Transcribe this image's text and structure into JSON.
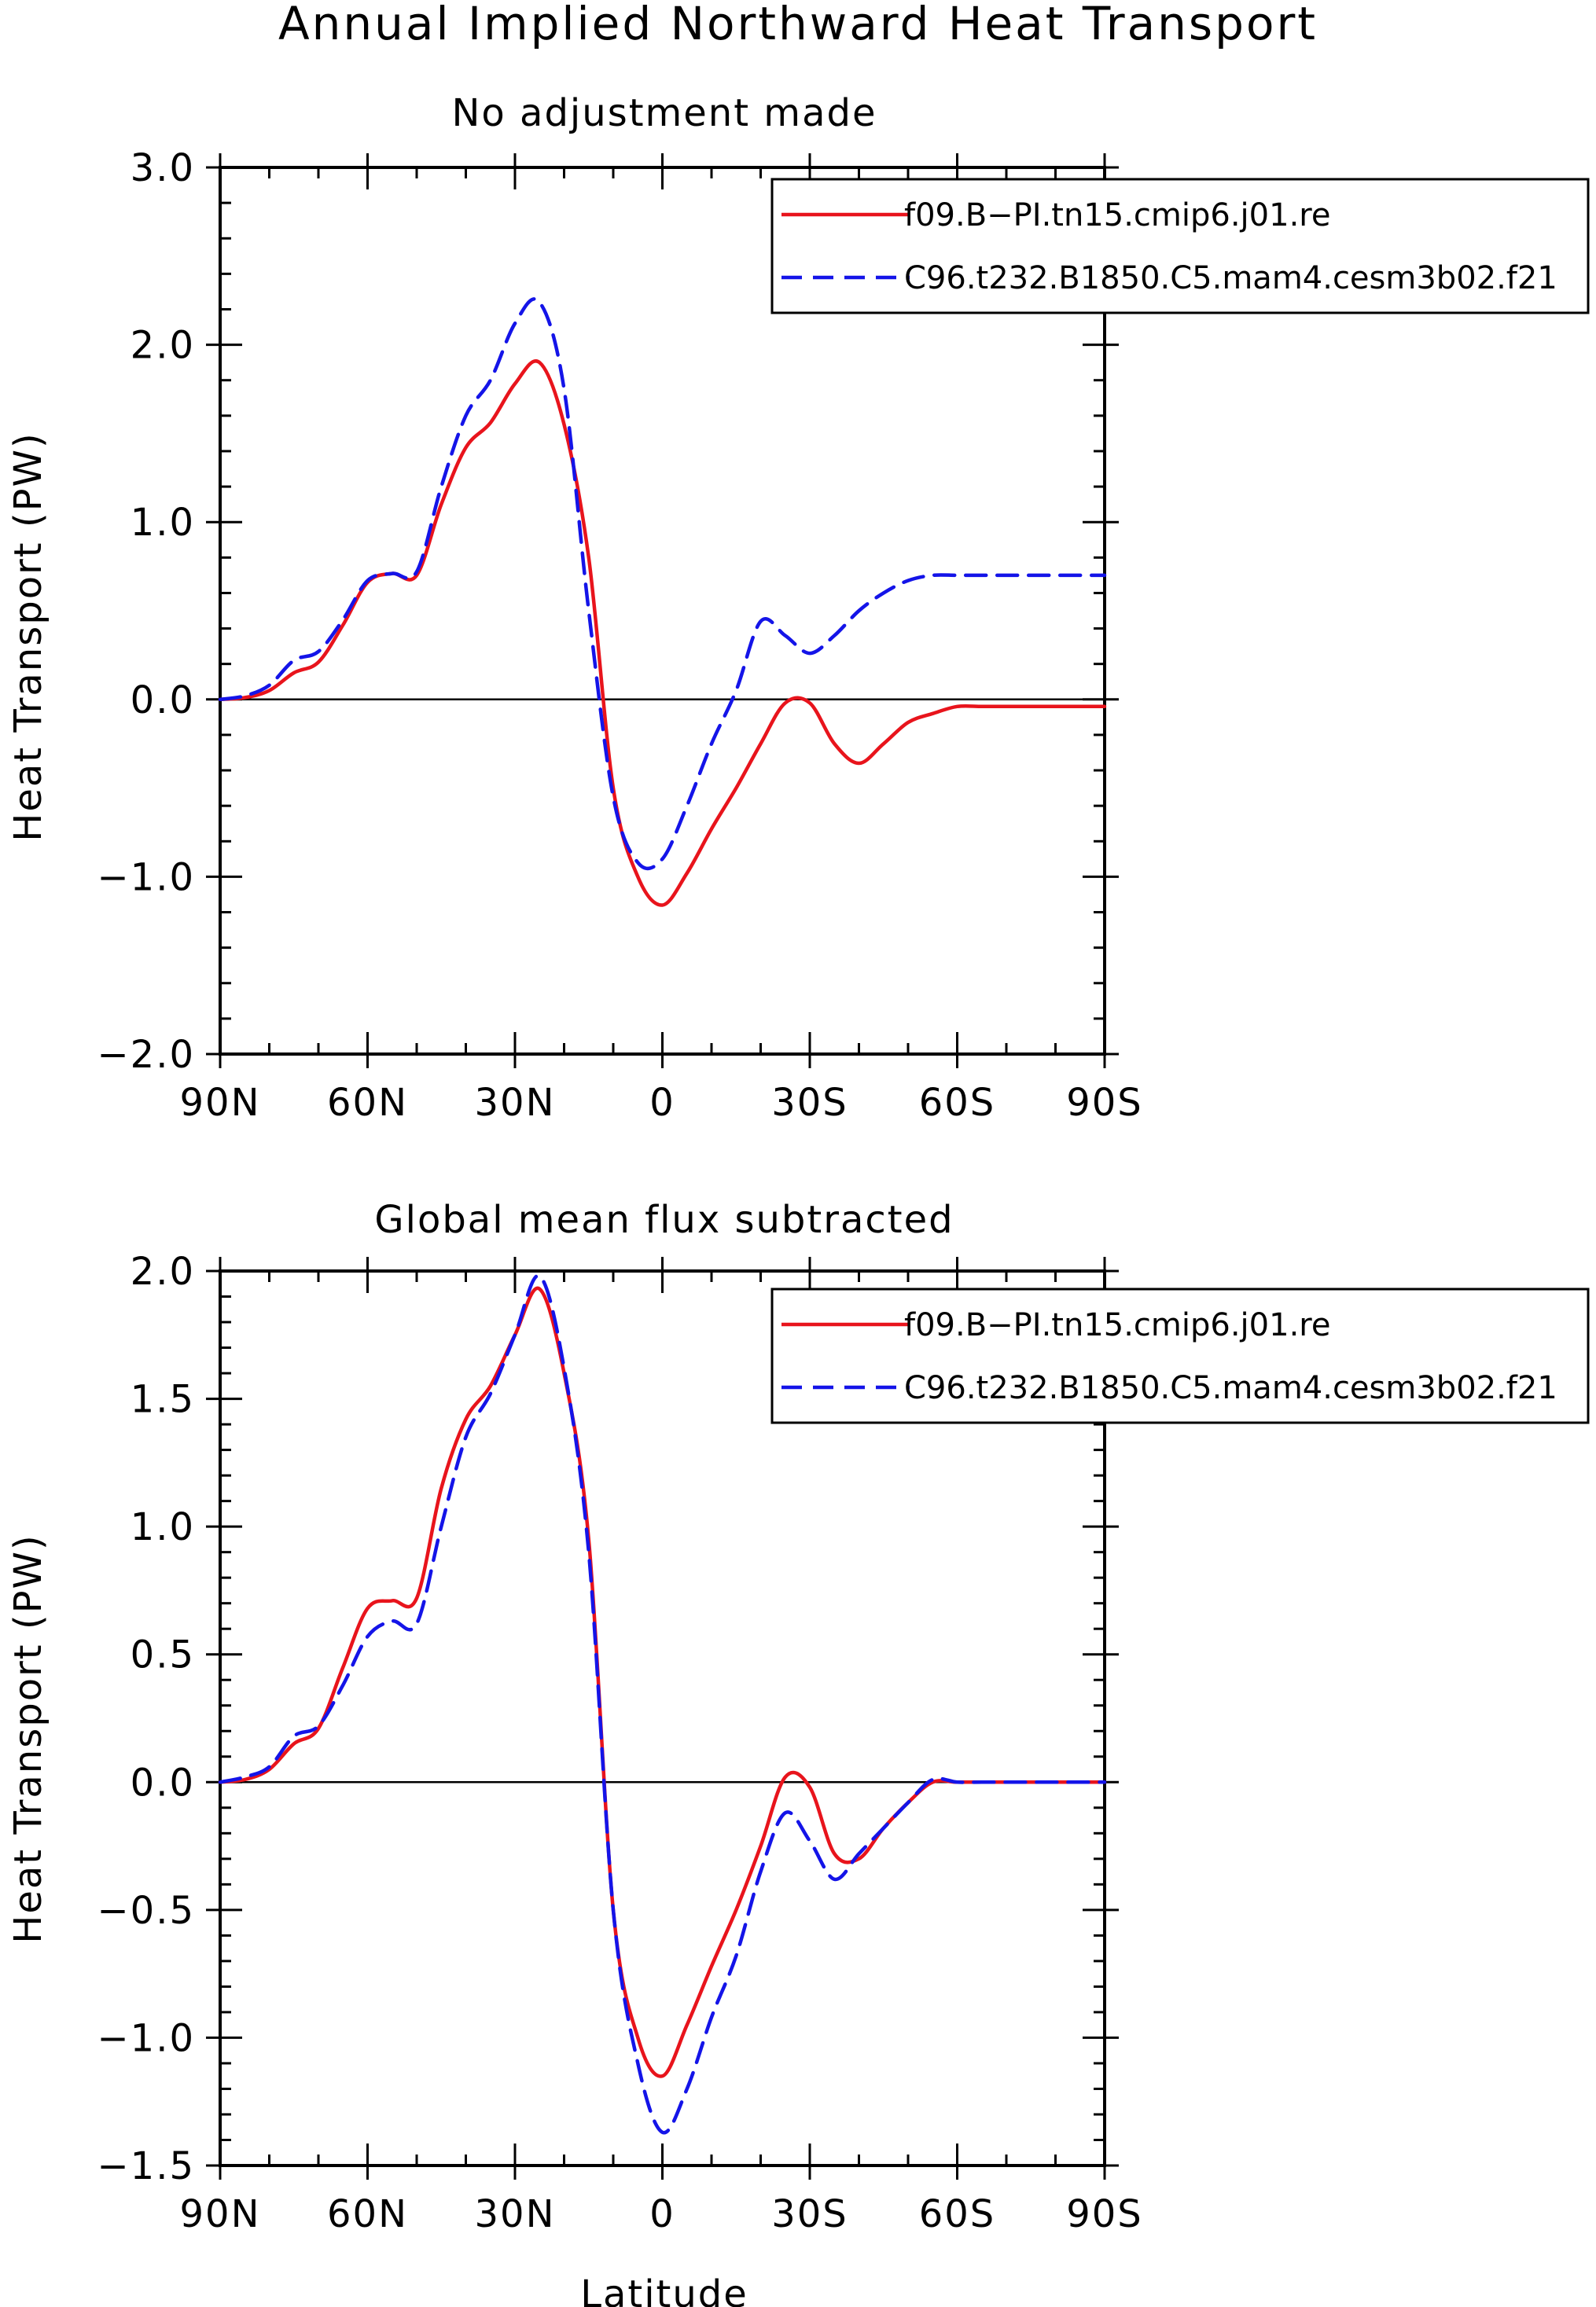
{
  "figure_title": "Annual Implied Northward Heat Transport",
  "chart_data": [
    {
      "type": "line",
      "title": "No adjustment made",
      "xlabel": "",
      "ylabel": "Heat Transport (PW)",
      "xlim": [
        90,
        -90
      ],
      "ylim": [
        -2.0,
        3.0
      ],
      "x_tick_values": [
        90,
        60,
        30,
        0,
        -30,
        -60,
        -90
      ],
      "x_tick_labels": [
        "90N",
        "60N",
        "30N",
        "0",
        "30S",
        "60S",
        "90S"
      ],
      "y_tick_values": [
        3.0,
        2.0,
        1.0,
        0.0,
        -1.0,
        -2.0
      ],
      "y_tick_labels": [
        "3.0",
        "2.0",
        "1.0",
        "0.0",
        "−1.0",
        "−2.0"
      ],
      "zero_line": true,
      "grid": false,
      "legend_position": "top-right",
      "series": [
        {
          "name": "f09.B−PI.tn15.cmip6.j01.re",
          "color": "#e8141c",
          "dash": "solid",
          "x": [
            90,
            85,
            80,
            75,
            70,
            65,
            60,
            55,
            50,
            45,
            40,
            35,
            30,
            25,
            20,
            15,
            10,
            5,
            0,
            -5,
            -10,
            -15,
            -20,
            -25,
            -30,
            -35,
            -40,
            -45,
            -50,
            -55,
            -60,
            -65,
            -70,
            -75,
            -80,
            -85,
            -90
          ],
          "y": [
            0.0,
            0.01,
            0.05,
            0.15,
            0.21,
            0.42,
            0.66,
            0.71,
            0.7,
            1.1,
            1.42,
            1.56,
            1.78,
            1.9,
            1.55,
            0.8,
            -0.5,
            -1.0,
            -1.16,
            -0.98,
            -0.73,
            -0.5,
            -0.25,
            -0.02,
            -0.02,
            -0.25,
            -0.36,
            -0.25,
            -0.13,
            -0.08,
            -0.04,
            -0.04,
            -0.04,
            -0.04,
            -0.04,
            -0.04,
            -0.04
          ]
        },
        {
          "name": "C96.t232.B1850.C5.mam4.cesm3b02.f21",
          "color": "#1414e8",
          "dash": "dashed",
          "x": [
            90,
            85,
            80,
            75,
            70,
            65,
            60,
            55,
            50,
            45,
            40,
            35,
            30,
            25,
            20,
            15,
            10,
            5,
            0,
            -5,
            -10,
            -15,
            -20,
            -25,
            -30,
            -35,
            -40,
            -45,
            -50,
            -55,
            -60,
            -65,
            -70,
            -75,
            -80,
            -85,
            -90
          ],
          "y": [
            0.0,
            0.02,
            0.08,
            0.22,
            0.27,
            0.45,
            0.67,
            0.71,
            0.72,
            1.2,
            1.6,
            1.8,
            2.12,
            2.24,
            1.75,
            0.5,
            -0.55,
            -0.92,
            -0.9,
            -0.6,
            -0.25,
            0.05,
            0.44,
            0.36,
            0.26,
            0.36,
            0.5,
            0.6,
            0.67,
            0.7,
            0.7,
            0.7,
            0.7,
            0.7,
            0.7,
            0.7,
            0.7
          ]
        }
      ]
    },
    {
      "type": "line",
      "title": "Global mean flux subtracted",
      "xlabel": "Latitude",
      "ylabel": "Heat Transport (PW)",
      "xlim": [
        90,
        -90
      ],
      "ylim": [
        -1.5,
        2.0
      ],
      "x_tick_values": [
        90,
        60,
        30,
        0,
        -30,
        -60,
        -90
      ],
      "x_tick_labels": [
        "90N",
        "60N",
        "30N",
        "0",
        "30S",
        "60S",
        "90S"
      ],
      "y_tick_values": [
        2.0,
        1.5,
        1.0,
        0.5,
        0.0,
        -0.5,
        -1.0,
        -1.5
      ],
      "y_tick_labels": [
        "2.0",
        "1.5",
        "1.0",
        "0.5",
        "0.0",
        "−0.5",
        "−1.0",
        "−1.5"
      ],
      "zero_line": true,
      "grid": false,
      "legend_position": "top-right",
      "series": [
        {
          "name": "f09.B−PI.tn15.cmip6.j01.re",
          "color": "#e8141c",
          "dash": "solid",
          "x": [
            90,
            85,
            80,
            75,
            70,
            65,
            60,
            55,
            50,
            45,
            40,
            35,
            30,
            25,
            20,
            15,
            10,
            5,
            0,
            -5,
            -10,
            -15,
            -20,
            -25,
            -30,
            -35,
            -40,
            -45,
            -50,
            -55,
            -60,
            -65,
            -70,
            -75,
            -80,
            -85,
            -90
          ],
          "y": [
            0.0,
            0.01,
            0.05,
            0.15,
            0.21,
            0.45,
            0.68,
            0.71,
            0.72,
            1.15,
            1.42,
            1.55,
            1.75,
            1.93,
            1.6,
            0.95,
            -0.5,
            -1.0,
            -1.15,
            -0.95,
            -0.72,
            -0.5,
            -0.25,
            0.02,
            -0.02,
            -0.28,
            -0.3,
            -0.18,
            -0.08,
            0.0,
            0.0,
            0.0,
            0.0,
            0.0,
            0.0,
            0.0,
            0.0
          ]
        },
        {
          "name": "C96.t232.B1850.C5.mam4.cesm3b02.f21",
          "color": "#1414e8",
          "dash": "dashed",
          "x": [
            90,
            85,
            80,
            75,
            70,
            65,
            60,
            55,
            50,
            45,
            40,
            35,
            30,
            25,
            20,
            15,
            10,
            5,
            0,
            -5,
            -10,
            -15,
            -20,
            -25,
            -30,
            -35,
            -40,
            -45,
            -50,
            -55,
            -60,
            -65,
            -70,
            -75,
            -80,
            -85,
            -90
          ],
          "y": [
            0.0,
            0.02,
            0.06,
            0.18,
            0.22,
            0.38,
            0.57,
            0.63,
            0.62,
            1.0,
            1.35,
            1.52,
            1.75,
            1.98,
            1.62,
            0.9,
            -0.5,
            -1.1,
            -1.37,
            -1.2,
            -0.92,
            -0.68,
            -0.35,
            -0.12,
            -0.23,
            -0.38,
            -0.28,
            -0.18,
            -0.08,
            0.01,
            0.0,
            0.0,
            0.0,
            0.0,
            0.0,
            0.0,
            0.0
          ]
        }
      ]
    }
  ]
}
